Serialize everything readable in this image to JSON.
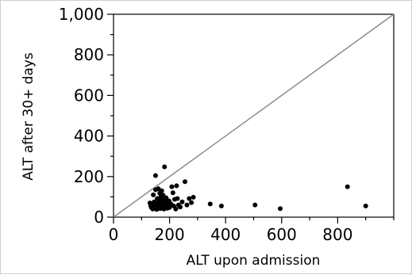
{
  "chart_data": {
    "type": "scatter",
    "title": "",
    "xlabel": "ALT upon admission",
    "ylabel": "ALT after 30+ days",
    "xlim": [
      0,
      1000
    ],
    "ylim": [
      0,
      1000
    ],
    "x_ticks": [
      0,
      200,
      400,
      600,
      800
    ],
    "x_tick_labels": [
      "0",
      "200",
      "400",
      "600",
      "800"
    ],
    "y_ticks": [
      0,
      200,
      400,
      600,
      800,
      1000
    ],
    "y_tick_labels": [
      "0",
      "200",
      "400",
      "600",
      "800",
      "1,000"
    ],
    "x_minor_step": 100,
    "y_minor_step": 100,
    "grid": false,
    "legend": "none",
    "reference_line": "identity (y = x)",
    "colors": {
      "points": "#000000",
      "reference_line": "#8c8c8c",
      "axes": "#000000"
    },
    "points": [
      {
        "x": 130,
        "y": 70
      },
      {
        "x": 133,
        "y": 55
      },
      {
        "x": 135,
        "y": 48
      },
      {
        "x": 138,
        "y": 62
      },
      {
        "x": 140,
        "y": 40
      },
      {
        "x": 142,
        "y": 110
      },
      {
        "x": 145,
        "y": 75
      },
      {
        "x": 148,
        "y": 52
      },
      {
        "x": 150,
        "y": 205
      },
      {
        "x": 150,
        "y": 135
      },
      {
        "x": 152,
        "y": 60
      },
      {
        "x": 154,
        "y": 38
      },
      {
        "x": 156,
        "y": 92
      },
      {
        "x": 158,
        "y": 68
      },
      {
        "x": 160,
        "y": 45
      },
      {
        "x": 160,
        "y": 140
      },
      {
        "x": 162,
        "y": 80
      },
      {
        "x": 163,
        "y": 55
      },
      {
        "x": 165,
        "y": 118
      },
      {
        "x": 167,
        "y": 42
      },
      {
        "x": 168,
        "y": 98
      },
      {
        "x": 170,
        "y": 70
      },
      {
        "x": 172,
        "y": 130
      },
      {
        "x": 173,
        "y": 50
      },
      {
        "x": 175,
        "y": 85
      },
      {
        "x": 177,
        "y": 108
      },
      {
        "x": 178,
        "y": 62
      },
      {
        "x": 180,
        "y": 40
      },
      {
        "x": 182,
        "y": 248
      },
      {
        "x": 184,
        "y": 76
      },
      {
        "x": 186,
        "y": 52
      },
      {
        "x": 188,
        "y": 95
      },
      {
        "x": 190,
        "y": 68
      },
      {
        "x": 192,
        "y": 44
      },
      {
        "x": 195,
        "y": 58
      },
      {
        "x": 198,
        "y": 80
      },
      {
        "x": 200,
        "y": 48
      },
      {
        "x": 205,
        "y": 65
      },
      {
        "x": 208,
        "y": 150
      },
      {
        "x": 212,
        "y": 120
      },
      {
        "x": 215,
        "y": 55
      },
      {
        "x": 218,
        "y": 88
      },
      {
        "x": 222,
        "y": 40
      },
      {
        "x": 225,
        "y": 155
      },
      {
        "x": 228,
        "y": 92
      },
      {
        "x": 232,
        "y": 60
      },
      {
        "x": 238,
        "y": 50
      },
      {
        "x": 245,
        "y": 75
      },
      {
        "x": 255,
        "y": 175
      },
      {
        "x": 262,
        "y": 60
      },
      {
        "x": 270,
        "y": 92
      },
      {
        "x": 278,
        "y": 72
      },
      {
        "x": 285,
        "y": 98
      },
      {
        "x": 345,
        "y": 65
      },
      {
        "x": 385,
        "y": 55
      },
      {
        "x": 505,
        "y": 60
      },
      {
        "x": 595,
        "y": 42
      },
      {
        "x": 835,
        "y": 150
      },
      {
        "x": 900,
        "y": 55
      }
    ]
  }
}
